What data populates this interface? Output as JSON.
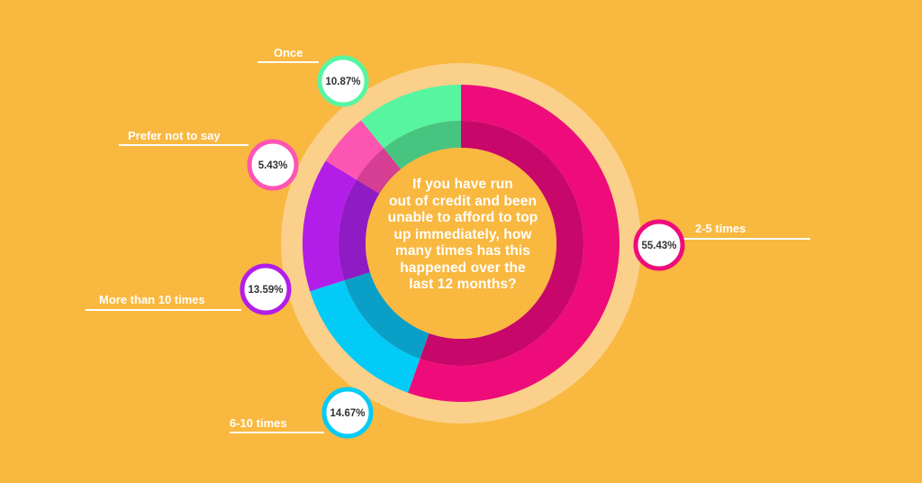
{
  "center_title_lines": [
    "If you have run",
    "out of credit and been",
    "unable to afford to top",
    "up immediately, how",
    "many times has this",
    "happened over the",
    "last 12 months?"
  ],
  "colors": {
    "background": "#F9B83F",
    "halo": "#FAD08B",
    "center": "#F9B83F",
    "label_line": "#ffffff",
    "bubble_fill": "#ffffff"
  },
  "chart_data": {
    "type": "pie",
    "title": "If you have run out of credit and been unable to afford to top up immediately, how many times has this happened over the last 12 months?",
    "slices": [
      {
        "label": "2-5 times",
        "value": 55.43,
        "display": "55.43%",
        "color": "#EE0C7B",
        "inner_color": "#C8076A"
      },
      {
        "label": "6-10 times",
        "value": 14.67,
        "display": "14.67%",
        "color": "#03CBF7",
        "inner_color": "#0A9FC6"
      },
      {
        "label": "More than 10 times",
        "value": 13.59,
        "display": "13.59%",
        "color": "#B21EE8",
        "inner_color": "#8E1BC3"
      },
      {
        "label": "Prefer not to say",
        "value": 5.43,
        "display": "5.43%",
        "color": "#FD55B2",
        "inner_color": "#D53E92"
      },
      {
        "label": "Once",
        "value": 10.87,
        "display": "10.87%",
        "color": "#58F5A1",
        "inner_color": "#48C481"
      }
    ]
  }
}
